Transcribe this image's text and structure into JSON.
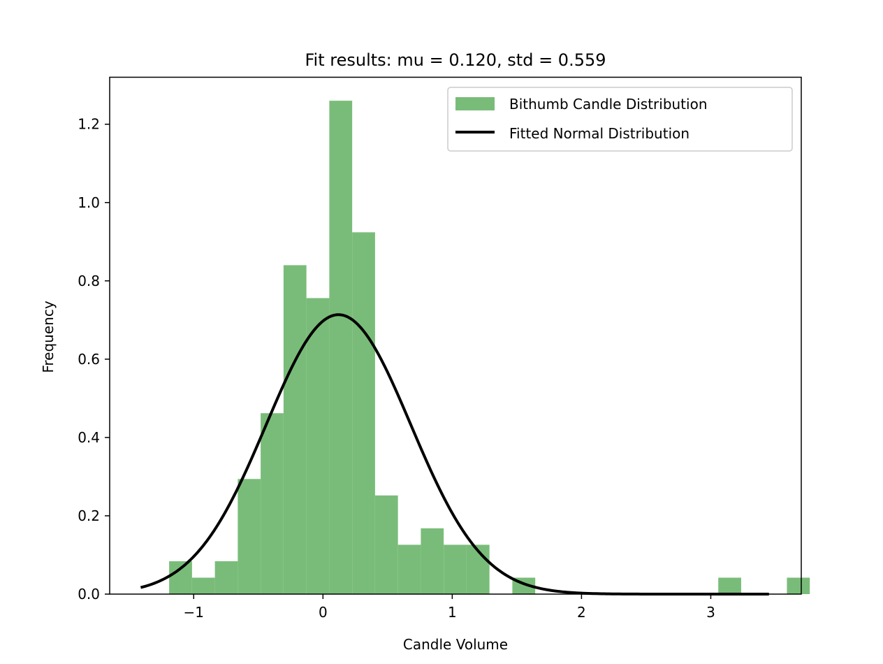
{
  "chart_data": {
    "type": "bar",
    "title": "Fit results: mu = 0.120,  std = 0.559",
    "xlabel": "Candle Volume",
    "ylabel": "Frequency",
    "xlim": [
      -1.65,
      3.7
    ],
    "ylim": [
      0.0,
      1.32
    ],
    "xticks": [
      -1,
      0,
      1,
      2,
      3
    ],
    "xtick_labels": [
      "−1",
      "0",
      "1",
      "2",
      "3"
    ],
    "yticks": [
      0.0,
      0.2,
      0.4,
      0.6,
      0.8,
      1.0,
      1.2
    ],
    "ytick_labels": [
      "0.0",
      "0.2",
      "0.4",
      "0.6",
      "0.8",
      "1.0",
      "1.2"
    ],
    "grid": false,
    "legend_position": "top-right",
    "bar_color": "#79bc79",
    "line_color": "#000000",
    "histogram": {
      "name": "Bithumb Candle Distribution",
      "bin_start": -1.19,
      "bin_width": 0.177,
      "values": [
        0.084,
        0.042,
        0.084,
        0.294,
        0.462,
        0.84,
        0.756,
        1.26,
        0.924,
        0.252,
        0.126,
        0.168,
        0.126,
        0.126,
        0.0,
        0.042,
        0.0,
        0.0,
        0.0,
        0.0,
        0.0,
        0.0,
        0.0,
        0.0,
        0.042,
        0.0,
        0.0,
        0.042
      ]
    },
    "fit": {
      "name": "Fitted Normal Distribution",
      "mu": 0.12,
      "std": 0.559,
      "x_range": [
        -1.41,
        3.45
      ]
    }
  }
}
